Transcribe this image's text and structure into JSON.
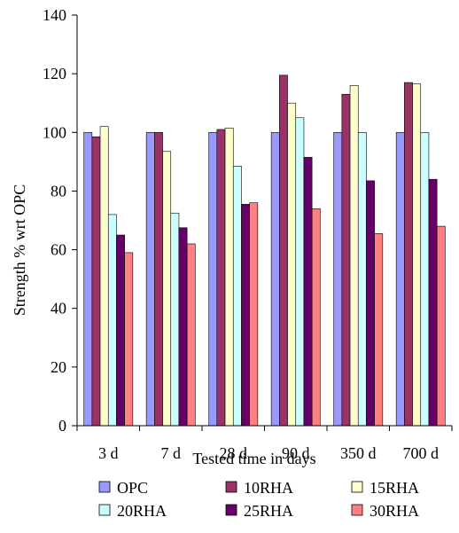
{
  "chart_data": {
    "type": "bar",
    "title": "",
    "xlabel": "Tested time in days",
    "ylabel": "Strength % wrt OPC",
    "categories": [
      "3 d",
      "7 d",
      "28 d",
      "90 d",
      "350 d",
      "700 d"
    ],
    "ylim": [
      0,
      140
    ],
    "yticks": [
      0,
      20,
      40,
      60,
      80,
      100,
      120,
      140
    ],
    "grid": false,
    "legend_position": "bottom",
    "series": [
      {
        "name": "OPC",
        "color": "#9999ff",
        "values": [
          100,
          100,
          100,
          100,
          100,
          100
        ]
      },
      {
        "name": "10RHA",
        "color": "#993366",
        "values": [
          98.5,
          100,
          101,
          119.5,
          113,
          117
        ]
      },
      {
        "name": "15RHA",
        "color": "#ffffcc",
        "values": [
          102,
          93.5,
          101.5,
          110,
          116,
          116.5
        ]
      },
      {
        "name": "20RHA",
        "color": "#ccffff",
        "values": [
          72,
          72.5,
          88.5,
          105,
          100,
          100
        ]
      },
      {
        "name": "25RHA",
        "color": "#660066",
        "values": [
          65,
          67.5,
          75.5,
          91.5,
          83.5,
          84
        ]
      },
      {
        "name": "30RHA",
        "color": "#ff8080",
        "values": [
          59,
          62,
          76,
          74,
          65.5,
          68
        ]
      }
    ]
  }
}
